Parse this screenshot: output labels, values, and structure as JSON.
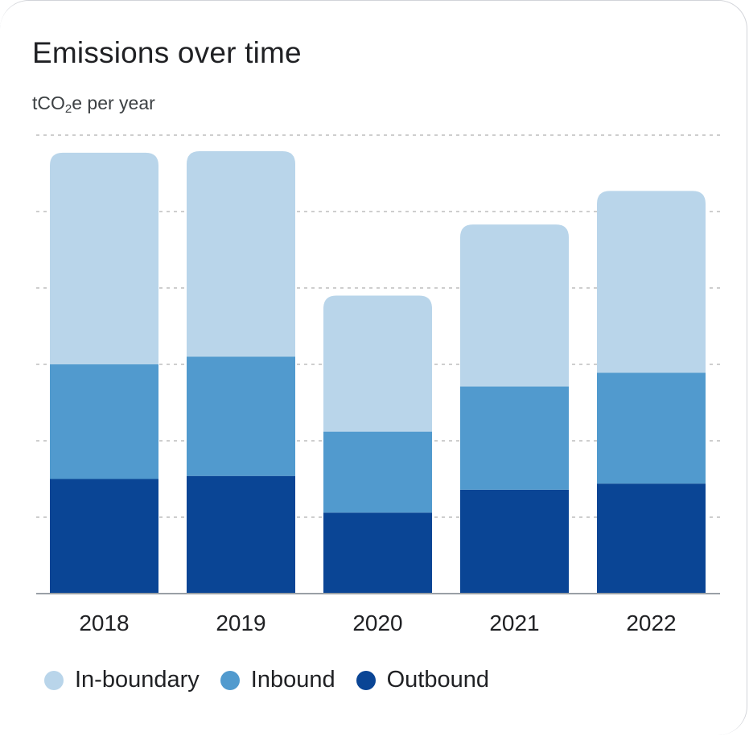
{
  "card": {
    "title": "Emissions over time",
    "subtitle_prefix": "tCO",
    "subtitle_sub": "2",
    "subtitle_suffix": "e per year"
  },
  "chart_data": {
    "type": "bar",
    "stacked": true,
    "categories": [
      "2018",
      "2019",
      "2020",
      "2021",
      "2022"
    ],
    "series": [
      {
        "name": "Outbound",
        "color": "#0a4595",
        "values": [
          1.5,
          1.54,
          1.06,
          1.36,
          1.44
        ]
      },
      {
        "name": "Inbound",
        "color": "#519ace",
        "values": [
          1.5,
          1.56,
          1.06,
          1.35,
          1.45
        ]
      },
      {
        "name": "In-boundary",
        "color": "#b9d5ea",
        "values": [
          2.77,
          2.69,
          1.78,
          2.12,
          2.38
        ]
      }
    ],
    "ylim": [
      0,
      6
    ],
    "y_grid_step": 1,
    "grid": true,
    "y_ticks_shown": false,
    "legend_position": "bottom-left"
  }
}
